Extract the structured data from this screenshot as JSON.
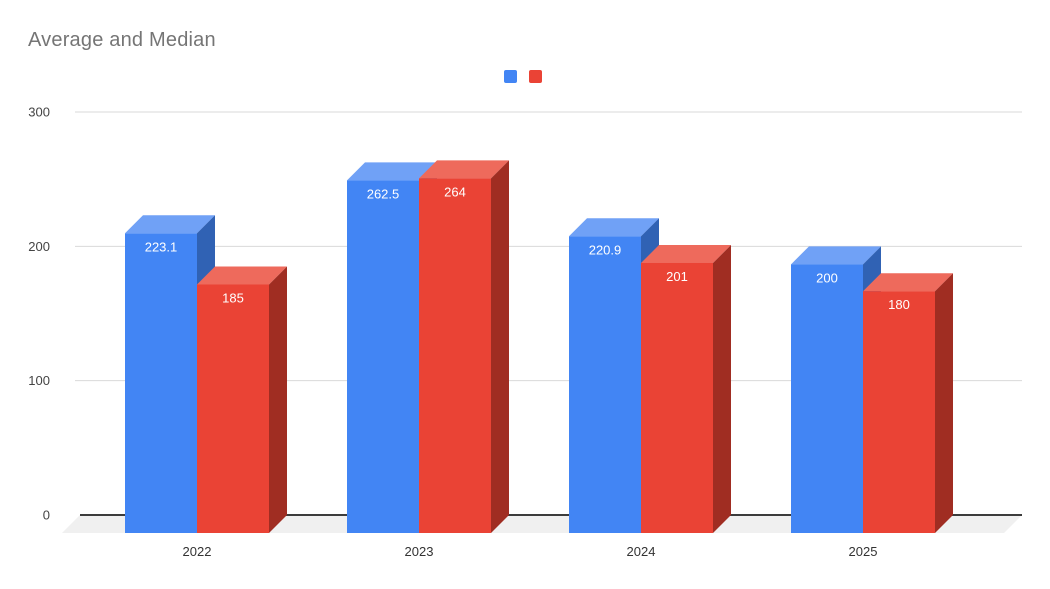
{
  "page": {
    "title": "Average and Median"
  },
  "chart_data": {
    "type": "bar",
    "style": "3d-column",
    "title": "Average and Median",
    "title_color": "#757575",
    "categories": [
      "2022",
      "2023",
      "2024",
      "2025"
    ],
    "series": [
      {
        "name": "",
        "values": [
          223.1,
          262.5,
          220.9,
          200
        ],
        "labels": [
          "223.1",
          "262.5",
          "220.9",
          "200"
        ],
        "color_front": "#4285f4",
        "color_top": "#70a1f6",
        "color_side": "#3062b4"
      },
      {
        "name": "",
        "values": [
          185,
          264,
          201,
          180
        ],
        "labels": [
          "185",
          "264",
          "201",
          "180"
        ],
        "color_front": "#ea4335",
        "color_top": "#ee6a5c",
        "color_side": "#a02d22"
      }
    ],
    "xlabel": "",
    "ylabel": "",
    "ylim": [
      0,
      300
    ],
    "yticks": [
      "0",
      "100",
      "200",
      "300"
    ],
    "grid": true,
    "legend_position": "top-center",
    "value_label_position": "inside-top",
    "value_label_color": "#ffffff",
    "axis_tick_color": "#444444",
    "category_label_color": "#333333",
    "gridline_color": "#dadada",
    "zero_line_color": "#3c3c3c",
    "floor_color": "#f0f0f0",
    "background_color": "#ffffff"
  }
}
